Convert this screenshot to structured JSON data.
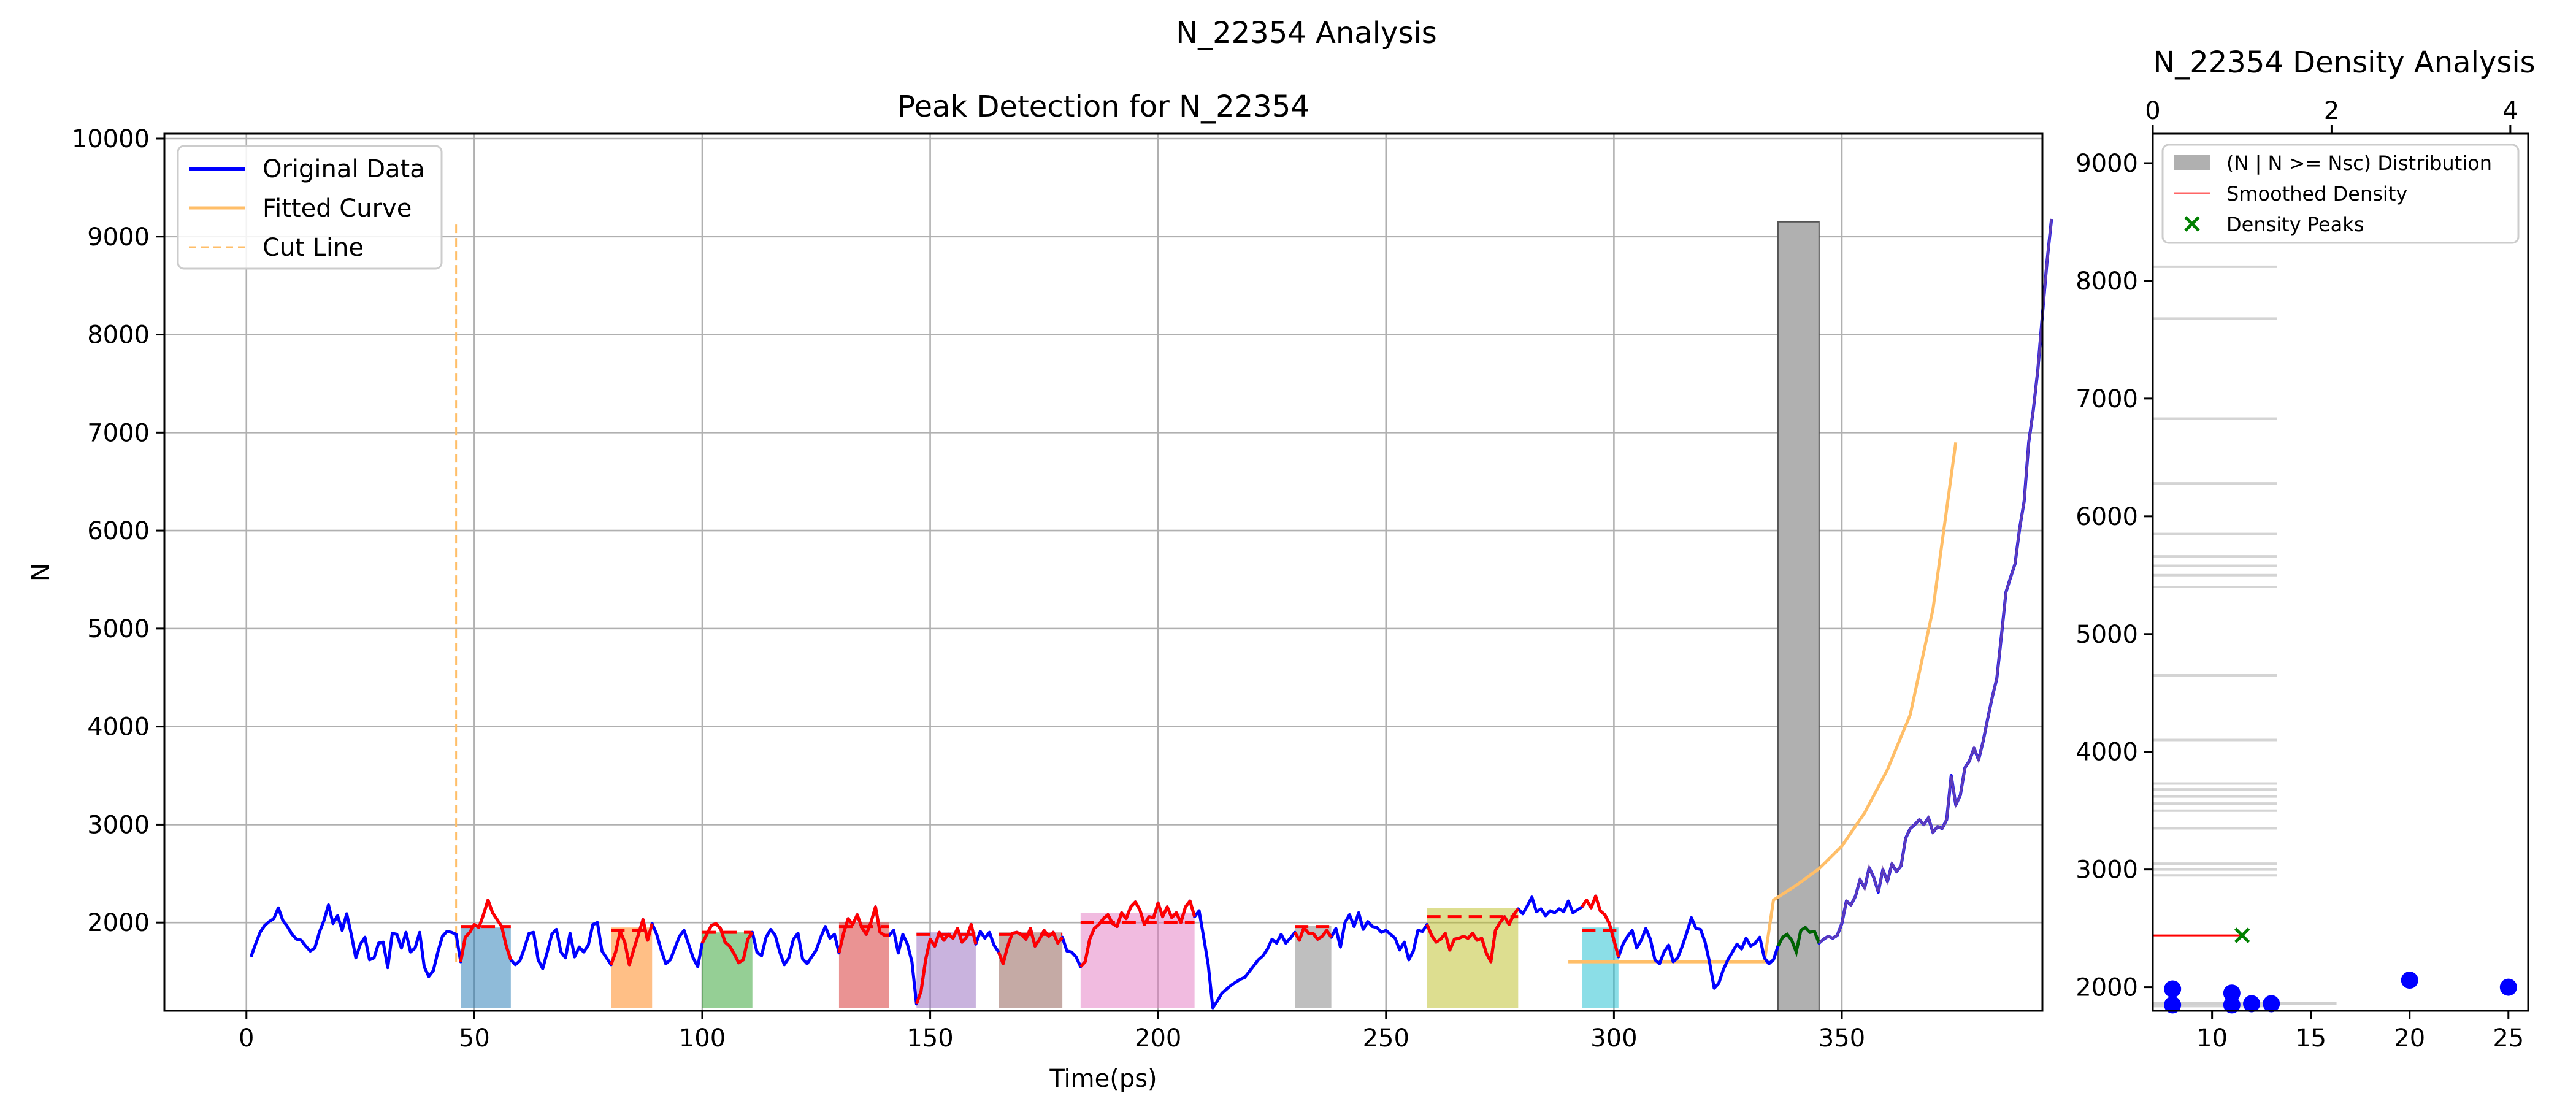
{
  "figure": {
    "suptitle": "N_22354 Analysis"
  },
  "chart_data": [
    {
      "type": "line",
      "title": "Peak Detection for N_22354",
      "xlabel": "Time(ps)",
      "ylabel": "N",
      "xlim": [
        -18,
        394
      ],
      "ylim": [
        1100,
        10050
      ],
      "xticks": [
        0,
        50,
        100,
        150,
        200,
        250,
        300,
        350
      ],
      "yticks": [
        2000,
        3000,
        4000,
        5000,
        6000,
        7000,
        8000,
        9000,
        10000
      ],
      "grid": true,
      "legend": {
        "position": "top-left",
        "entries": [
          "Original Data",
          "Fitted Curve",
          "Cut Line"
        ]
      },
      "colors": {
        "original": "#0000ff",
        "fitted": "#ffbe68",
        "cut_line": "#ffbe68",
        "peak": "#ff0000",
        "tail_green": "#006400",
        "tail_purple": "#7b4fa0",
        "grid": "#b0b0b0"
      },
      "series": [
        {
          "name": "Original Data",
          "x_start": 1,
          "x_step": 1,
          "values": [
            1650,
            1780,
            1900,
            1970,
            2010,
            2040,
            2150,
            2020,
            1960,
            1880,
            1830,
            1820,
            1760,
            1710,
            1740,
            1900,
            2020,
            2180,
            1990,
            2070,
            1920,
            2090,
            1880,
            1640,
            1780,
            1850,
            1620,
            1640,
            1790,
            1800,
            1540,
            1890,
            1880,
            1740,
            1900,
            1700,
            1740,
            1900,
            1550,
            1450,
            1510,
            1700,
            1860,
            1910,
            1900,
            1880,
            1600,
            1850,
            1900,
            1980,
            1950,
            2080,
            2230,
            2100,
            2030,
            1960,
            1760,
            1620,
            1570,
            1610,
            1740,
            1890,
            1900,
            1620,
            1530,
            1700,
            1880,
            1930,
            1700,
            1640,
            1890,
            1650,
            1750,
            1700,
            1770,
            1980,
            2000,
            1710,
            1640,
            1570,
            1700,
            1910,
            1800,
            1570,
            1730,
            1880,
            2030,
            1820,
            1990,
            1880,
            1720,
            1580,
            1620,
            1740,
            1860,
            1920,
            1780,
            1640,
            1550,
            1790,
            1880,
            1970,
            1990,
            1940,
            1800,
            1760,
            1680,
            1590,
            1620,
            1830,
            1900,
            1700,
            1660,
            1850,
            1930,
            1870,
            1700,
            1570,
            1640,
            1830,
            1890,
            1630,
            1580,
            1650,
            1720,
            1850,
            1960,
            1840,
            1880,
            1690,
            1890,
            2040,
            1980,
            2080,
            1950,
            1880,
            2000,
            2160,
            1900,
            1870,
            1870,
            1920,
            1690,
            1880,
            1780,
            1600,
            1170,
            1300,
            1620,
            1830,
            1760,
            1900,
            1820,
            1880,
            1840,
            1940,
            1800,
            1850,
            1980,
            1780,
            1910,
            1840,
            1900,
            1770,
            1700,
            1580,
            1760,
            1890,
            1900,
            1880,
            1830,
            1940,
            1760,
            1830,
            1920,
            1860,
            1900,
            1790,
            1850,
            1710,
            1700,
            1650,
            1550,
            1600,
            1830,
            1940,
            1980,
            2040,
            2080,
            1990,
            1960,
            2100,
            2040,
            2160,
            2210,
            2130,
            1980,
            2060,
            2050,
            2200,
            2060,
            2160,
            2050,
            2100,
            2000,
            2160,
            2220,
            2060,
            2120,
            1850,
            1570,
            1130,
            1200,
            1280,
            1320,
            1360,
            1390,
            1420,
            1440,
            1500,
            1560,
            1620,
            1660,
            1730,
            1830,
            1790,
            1880,
            1790,
            1840,
            1900,
            1820,
            1950,
            1890,
            1890,
            1830,
            1860,
            1920,
            1850,
            1940,
            1750,
            2000,
            2080,
            1960,
            2100,
            1930,
            2010,
            1960,
            1950,
            1900,
            1920,
            1880,
            1840,
            1720,
            1800,
            1620,
            1710,
            1920,
            1910,
            1980,
            1870,
            1800,
            1830,
            1890,
            1720,
            1830,
            1840,
            1860,
            1840,
            1890,
            1820,
            1840,
            1690,
            1600,
            1920,
            2000,
            2060,
            1980,
            2080,
            2140,
            2090,
            2170,
            2260,
            2110,
            2140,
            2070,
            2120,
            2100,
            2140,
            2110,
            2220,
            2100,
            2130,
            2160,
            2230,
            2150,
            2270,
            2120,
            2080,
            1990,
            1820,
            1650,
            1780,
            1860,
            1920,
            1740,
            1820,
            1940,
            1830,
            1620,
            1580,
            1700,
            1770,
            1600,
            1640,
            1760,
            1900,
            2050,
            1940,
            1930,
            1800,
            1590,
            1330,
            1380,
            1520,
            1620,
            1700,
            1780,
            1730,
            1840,
            1760,
            1790,
            1850,
            1640,
            1580,
            1620,
            1760,
            1850,
            1880,
            1820,
            1700,
            1920,
            1950,
            1900,
            1910,
            1790,
            1830,
            1860,
            1840,
            1870,
            1990,
            2220,
            2180,
            2270,
            2440,
            2350,
            2560,
            2460,
            2310,
            2540,
            2420,
            2600,
            2520,
            2580,
            2860,
            2960,
            3000,
            3050,
            3000,
            3070,
            2920,
            2980,
            2960,
            3050,
            3500,
            3200,
            3300,
            3580,
            3650,
            3780,
            3660,
            3850,
            4080,
            4300,
            4490,
            4920,
            5370,
            5520,
            5660,
            6020,
            6300,
            6900,
            7230,
            7640,
            8200,
            8740,
            9180
          ]
        },
        {
          "name": "Fitted Curve",
          "x": [
            290,
            300,
            310,
            320,
            333,
            335,
            340,
            345,
            350,
            355,
            360,
            365,
            370,
            375
          ],
          "values": [
            1600,
            1600,
            1600,
            1600,
            1600,
            2230,
            2380,
            2550,
            2780,
            3120,
            3560,
            4120,
            5200,
            6900
          ]
        },
        {
          "name": "Cut Line",
          "x": [
            46,
            46
          ],
          "values": [
            1600,
            9150
          ]
        }
      ],
      "regions": [
        {
          "x0": 47,
          "x1": 58,
          "top": 1950,
          "color": "#1f77b4"
        },
        {
          "x0": 80,
          "x1": 89,
          "top": 1950,
          "color": "#ff7f0e"
        },
        {
          "x0": 100,
          "x1": 111,
          "top": 1900,
          "color": "#2ca02c"
        },
        {
          "x0": 130,
          "x1": 141,
          "top": 2000,
          "color": "#d62728"
        },
        {
          "x0": 147,
          "x1": 160,
          "top": 1900,
          "color": "#9467bd"
        },
        {
          "x0": 165,
          "x1": 179,
          "top": 1900,
          "color": "#8c564b"
        },
        {
          "x0": 183,
          "x1": 208,
          "top": 2100,
          "color": "#e377c2"
        },
        {
          "x0": 230,
          "x1": 238,
          "top": 1970,
          "color": "#7f7f7f"
        },
        {
          "x0": 259,
          "x1": 279,
          "top": 2150,
          "color": "#bcbd22"
        },
        {
          "x0": 293,
          "x1": 301,
          "top": 1950,
          "color": "#17becf"
        }
      ],
      "peak_segments": [
        {
          "x0": 47,
          "x1": 58,
          "level": 1960
        },
        {
          "x0": 80,
          "x1": 89,
          "level": 1920
        },
        {
          "x0": 100,
          "x1": 111,
          "level": 1900
        },
        {
          "x0": 130,
          "x1": 141,
          "level": 1960
        },
        {
          "x0": 147,
          "x1": 160,
          "level": 1880
        },
        {
          "x0": 165,
          "x1": 179,
          "level": 1880
        },
        {
          "x0": 183,
          "x1": 208,
          "level": 2000
        },
        {
          "x0": 230,
          "x1": 238,
          "level": 1960
        },
        {
          "x0": 259,
          "x1": 279,
          "level": 2060
        },
        {
          "x0": 293,
          "x1": 301,
          "level": 1920
        }
      ],
      "highlight_bar": {
        "x0": 336,
        "x1": 345,
        "top": 9150,
        "color": "#b0b0b0"
      }
    },
    {
      "type": "scatter",
      "title": "N_22354 Density Analysis",
      "xlim": [
        7,
        26
      ],
      "x_top_lim": [
        0,
        4.2
      ],
      "ylim": [
        1800,
        9250
      ],
      "xticks": [
        10,
        15,
        20,
        25
      ],
      "x_top_ticks": [
        0,
        2,
        4
      ],
      "yticks": [
        2000,
        3000,
        4000,
        5000,
        6000,
        7000,
        8000,
        9000
      ],
      "grid": false,
      "legend": {
        "position": "top-right",
        "entries": [
          "(N | N >= Nsc) Distribution",
          "Smoothed Density",
          "Density Peaks"
        ]
      },
      "colors": {
        "distribution": "#b0b0b0",
        "smoothed_density": "#ff0000",
        "density_peak": "#008000",
        "points": "#0000ff"
      },
      "distribution_levels": [
        1840,
        2950,
        3000,
        3050,
        3350,
        3500,
        3560,
        3620,
        3680,
        3730,
        4100,
        4650,
        5400,
        5500,
        5580,
        5660,
        5850,
        6280,
        6830,
        7680,
        8120
      ],
      "smoothed_density": {
        "level": 2440,
        "top_x_end": 1.0
      },
      "density_peaks": [
        {
          "top_x": 1.0,
          "y": 2440
        }
      ],
      "points": [
        {
          "x": 8,
          "y": 1985
        },
        {
          "x": 8,
          "y": 1850
        },
        {
          "x": 11,
          "y": 1950
        },
        {
          "x": 11,
          "y": 1850
        },
        {
          "x": 12,
          "y": 1860
        },
        {
          "x": 13,
          "y": 1860
        },
        {
          "x": 20,
          "y": 2060
        },
        {
          "x": 25,
          "y": 2000
        }
      ]
    }
  ]
}
